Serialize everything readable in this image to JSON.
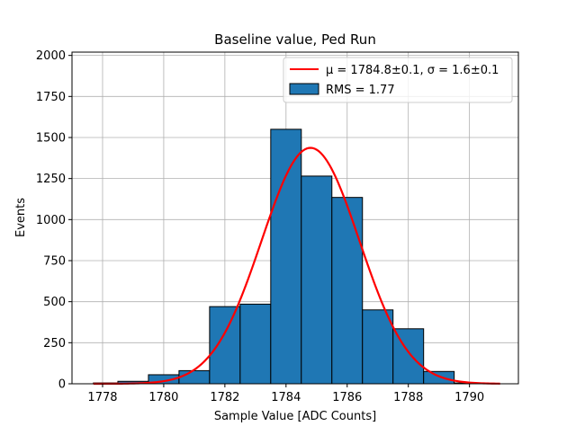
{
  "chart_data": {
    "type": "bar",
    "title": "Baseline value, Ped Run",
    "xlabel": "Sample Value [ADC Counts]",
    "ylabel": "Events",
    "xlim": [
      1777.0,
      1791.6
    ],
    "ylim": [
      0,
      2020
    ],
    "xticks": [
      1778,
      1780,
      1782,
      1784,
      1786,
      1788,
      1790
    ],
    "yticks": [
      0,
      250,
      500,
      750,
      1000,
      1250,
      1500,
      1750,
      2000
    ],
    "grid": true,
    "legend_position": "top-right",
    "bar_color": "#1f77b4",
    "fit_color": "#ff0000",
    "histogram": {
      "name": "RMS = 1.77",
      "bins": [
        {
          "x0": 1777.7,
          "x1": 1778.5,
          "count": 5
        },
        {
          "x0": 1778.5,
          "x1": 1779.5,
          "count": 15
        },
        {
          "x0": 1779.5,
          "x1": 1780.5,
          "count": 55
        },
        {
          "x0": 1780.5,
          "x1": 1781.5,
          "count": 80
        },
        {
          "x0": 1781.5,
          "x1": 1782.5,
          "count": 470
        },
        {
          "x0": 1782.5,
          "x1": 1783.5,
          "count": 485
        },
        {
          "x0": 1783.5,
          "x1": 1784.5,
          "count": 1550
        },
        {
          "x0": 1784.5,
          "x1": 1785.5,
          "count": 1265
        },
        {
          "x0": 1785.5,
          "x1": 1786.5,
          "count": 1135
        },
        {
          "x0": 1786.5,
          "x1": 1787.5,
          "count": 450
        },
        {
          "x0": 1787.5,
          "x1": 1788.5,
          "count": 335
        },
        {
          "x0": 1788.5,
          "x1": 1789.5,
          "count": 75
        },
        {
          "x0": 1789.5,
          "x1": 1790.5,
          "count": 5
        }
      ]
    },
    "fit": {
      "name_mu_part": "μ = 1784.8±0.1, ",
      "name_sigma_part": "σ = 1.6±0.1",
      "mu": 1784.8,
      "sigma": 1.6,
      "amplitude": 1437,
      "x_range": [
        1777.7,
        1791.0
      ]
    }
  }
}
